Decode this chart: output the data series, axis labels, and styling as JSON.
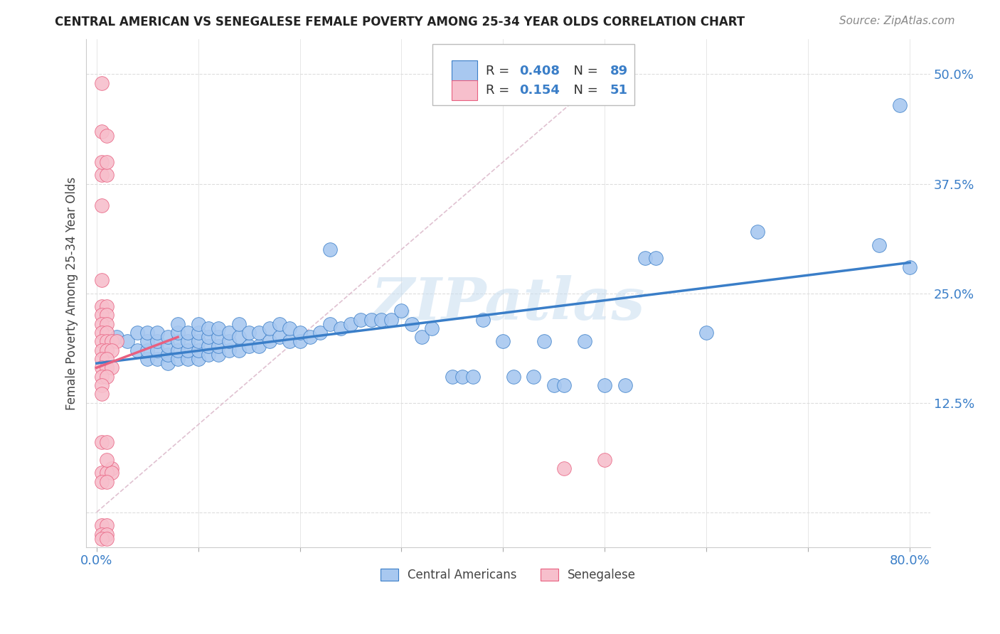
{
  "title": "CENTRAL AMERICAN VS SENEGALESE FEMALE POVERTY AMONG 25-34 YEAR OLDS CORRELATION CHART",
  "source": "Source: ZipAtlas.com",
  "ylabel": "Female Poverty Among 25-34 Year Olds",
  "xlim": [
    -0.01,
    0.82
  ],
  "ylim": [
    -0.04,
    0.54
  ],
  "xticks": [
    0.0,
    0.1,
    0.2,
    0.3,
    0.4,
    0.5,
    0.6,
    0.7,
    0.8
  ],
  "xticklabels": [
    "0.0%",
    "",
    "",
    "",
    "",
    "",
    "",
    "",
    "80.0%"
  ],
  "ytick_positions": [
    0.0,
    0.125,
    0.25,
    0.375,
    0.5
  ],
  "yticklabels": [
    "",
    "12.5%",
    "25.0%",
    "37.5%",
    "50.0%"
  ],
  "r_blue": "0.408",
  "n_blue": "89",
  "r_pink": "0.154",
  "n_pink": "51",
  "blue_color": "#a8c8f0",
  "pink_color": "#f7bfcc",
  "line_blue": "#3a7ec8",
  "line_pink": "#e86080",
  "diag_color": "#ddbbcc",
  "legend_r_color": "#3a7ec8",
  "watermark": "ZIPatlas",
  "blue_scatter": [
    [
      0.02,
      0.2
    ],
    [
      0.03,
      0.195
    ],
    [
      0.04,
      0.185
    ],
    [
      0.04,
      0.205
    ],
    [
      0.05,
      0.175
    ],
    [
      0.05,
      0.185
    ],
    [
      0.05,
      0.195
    ],
    [
      0.05,
      0.205
    ],
    [
      0.06,
      0.175
    ],
    [
      0.06,
      0.185
    ],
    [
      0.06,
      0.195
    ],
    [
      0.06,
      0.205
    ],
    [
      0.07,
      0.17
    ],
    [
      0.07,
      0.18
    ],
    [
      0.07,
      0.19
    ],
    [
      0.07,
      0.2
    ],
    [
      0.08,
      0.175
    ],
    [
      0.08,
      0.185
    ],
    [
      0.08,
      0.195
    ],
    [
      0.08,
      0.205
    ],
    [
      0.08,
      0.215
    ],
    [
      0.09,
      0.175
    ],
    [
      0.09,
      0.185
    ],
    [
      0.09,
      0.195
    ],
    [
      0.09,
      0.205
    ],
    [
      0.1,
      0.175
    ],
    [
      0.1,
      0.185
    ],
    [
      0.1,
      0.195
    ],
    [
      0.1,
      0.205
    ],
    [
      0.1,
      0.215
    ],
    [
      0.11,
      0.18
    ],
    [
      0.11,
      0.19
    ],
    [
      0.11,
      0.2
    ],
    [
      0.11,
      0.21
    ],
    [
      0.12,
      0.18
    ],
    [
      0.12,
      0.19
    ],
    [
      0.12,
      0.2
    ],
    [
      0.12,
      0.21
    ],
    [
      0.13,
      0.185
    ],
    [
      0.13,
      0.195
    ],
    [
      0.13,
      0.205
    ],
    [
      0.14,
      0.185
    ],
    [
      0.14,
      0.2
    ],
    [
      0.14,
      0.215
    ],
    [
      0.15,
      0.19
    ],
    [
      0.15,
      0.205
    ],
    [
      0.16,
      0.19
    ],
    [
      0.16,
      0.205
    ],
    [
      0.17,
      0.195
    ],
    [
      0.17,
      0.21
    ],
    [
      0.18,
      0.2
    ],
    [
      0.18,
      0.215
    ],
    [
      0.19,
      0.195
    ],
    [
      0.19,
      0.21
    ],
    [
      0.2,
      0.195
    ],
    [
      0.2,
      0.205
    ],
    [
      0.21,
      0.2
    ],
    [
      0.22,
      0.205
    ],
    [
      0.23,
      0.215
    ],
    [
      0.23,
      0.3
    ],
    [
      0.24,
      0.21
    ],
    [
      0.25,
      0.215
    ],
    [
      0.26,
      0.22
    ],
    [
      0.27,
      0.22
    ],
    [
      0.28,
      0.22
    ],
    [
      0.29,
      0.22
    ],
    [
      0.3,
      0.23
    ],
    [
      0.31,
      0.215
    ],
    [
      0.32,
      0.2
    ],
    [
      0.33,
      0.21
    ],
    [
      0.35,
      0.155
    ],
    [
      0.36,
      0.155
    ],
    [
      0.37,
      0.155
    ],
    [
      0.38,
      0.22
    ],
    [
      0.4,
      0.195
    ],
    [
      0.41,
      0.155
    ],
    [
      0.43,
      0.155
    ],
    [
      0.44,
      0.195
    ],
    [
      0.45,
      0.145
    ],
    [
      0.46,
      0.145
    ],
    [
      0.48,
      0.195
    ],
    [
      0.5,
      0.145
    ],
    [
      0.52,
      0.145
    ],
    [
      0.54,
      0.29
    ],
    [
      0.55,
      0.29
    ],
    [
      0.6,
      0.205
    ],
    [
      0.65,
      0.32
    ],
    [
      0.77,
      0.305
    ],
    [
      0.79,
      0.465
    ],
    [
      0.8,
      0.28
    ]
  ],
  "pink_scatter": [
    [
      0.005,
      0.435
    ],
    [
      0.01,
      0.43
    ],
    [
      0.005,
      0.385
    ],
    [
      0.01,
      0.385
    ],
    [
      0.005,
      0.265
    ],
    [
      0.005,
      0.235
    ],
    [
      0.01,
      0.235
    ],
    [
      0.005,
      0.225
    ],
    [
      0.01,
      0.225
    ],
    [
      0.005,
      0.215
    ],
    [
      0.01,
      0.215
    ],
    [
      0.005,
      0.205
    ],
    [
      0.01,
      0.205
    ],
    [
      0.005,
      0.195
    ],
    [
      0.01,
      0.195
    ],
    [
      0.015,
      0.195
    ],
    [
      0.02,
      0.195
    ],
    [
      0.005,
      0.185
    ],
    [
      0.01,
      0.185
    ],
    [
      0.015,
      0.185
    ],
    [
      0.005,
      0.175
    ],
    [
      0.01,
      0.175
    ],
    [
      0.005,
      0.165
    ],
    [
      0.01,
      0.165
    ],
    [
      0.015,
      0.165
    ],
    [
      0.005,
      0.155
    ],
    [
      0.01,
      0.155
    ],
    [
      0.005,
      0.145
    ],
    [
      0.005,
      0.135
    ],
    [
      0.005,
      0.08
    ],
    [
      0.01,
      0.08
    ],
    [
      0.015,
      0.05
    ],
    [
      0.005,
      0.045
    ],
    [
      0.01,
      0.045
    ],
    [
      0.015,
      0.045
    ],
    [
      0.005,
      0.035
    ],
    [
      0.01,
      0.035
    ],
    [
      0.005,
      -0.015
    ],
    [
      0.01,
      -0.015
    ],
    [
      0.005,
      -0.025
    ],
    [
      0.01,
      -0.025
    ],
    [
      0.005,
      -0.03
    ],
    [
      0.01,
      -0.03
    ],
    [
      0.005,
      0.49
    ],
    [
      0.46,
      0.05
    ],
    [
      0.5,
      0.06
    ],
    [
      0.005,
      0.4
    ],
    [
      0.01,
      0.4
    ],
    [
      0.005,
      0.35
    ],
    [
      0.01,
      0.06
    ]
  ],
  "blue_trend_x": [
    0.0,
    0.8
  ],
  "blue_trend_y": [
    0.17,
    0.285
  ],
  "pink_trend_x": [
    0.0,
    0.08
  ],
  "pink_trend_y": [
    0.165,
    0.2
  ],
  "grid_color": "#dddddd",
  "grid_h_style": "--",
  "bg_color": "white"
}
